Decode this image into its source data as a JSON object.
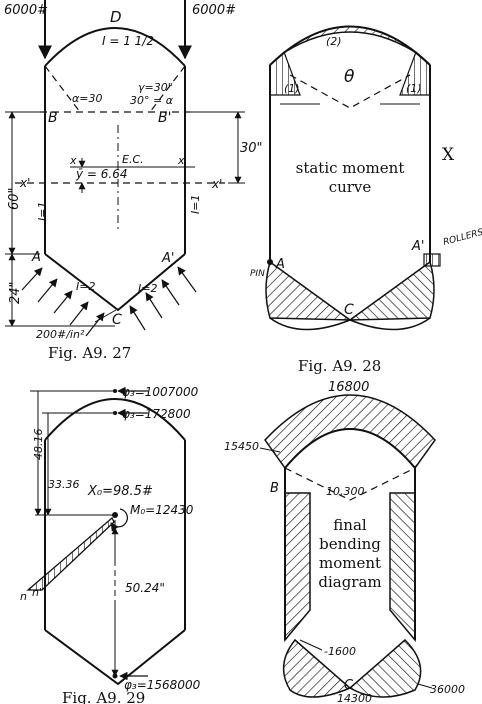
{
  "captions": {
    "fig27": "Fig. A9. 27",
    "fig28": "Fig. A9. 28",
    "fig29": "Fig. A9. 29"
  },
  "fig27": {
    "load_left": "6000#",
    "load_right": "6000#",
    "D": "D",
    "I_top": "I = 1 1/2",
    "alpha": "α=30",
    "gamma": "γ=30\"",
    "thirty_alpha": "30° = α",
    "B": "B",
    "B_prime": "B'",
    "dim_30": "30\"",
    "dim_60": "60\"",
    "x_left": "x",
    "x_right": "x",
    "x_prime_left": "x'",
    "x_prime_right": "x'",
    "ybar": "ȳ = 6.64",
    "ec": "E.C.",
    "I_left": "I=1",
    "I_right": "I=1",
    "A": "A",
    "A_prime": "A'",
    "dim_24": "24\"",
    "I_bl": "I=2",
    "I_br": "I=2",
    "C": "C",
    "pressure": "200#/in²"
  },
  "fig28": {
    "label2": "(2)",
    "label1_left": "(1)",
    "label1_right": "(1)",
    "theta": "θ",
    "X": "X",
    "text_line1": "static moment",
    "text_line2": "curve",
    "A": "A",
    "A_prime": "A'",
    "pin": "PIN",
    "rollers": "ROLLERS",
    "C": "C"
  },
  "fig29": {
    "phi1": "φ₃=1007000",
    "phi2": "φ₃=172800",
    "dim_4816": "48.16",
    "dim_3336": "33.36",
    "x0": "X₀=98.5#",
    "m0": "M₀=12430",
    "dim_5024": "50.24\"",
    "n": "n",
    "n_prime": "n'",
    "phi3": "φ₃=1568000"
  },
  "fig30": {
    "v16800": "16800",
    "v15450": "15450",
    "B": "B",
    "v10300": "10,300",
    "text_line1": "final",
    "text_line2": "bending",
    "text_line3": "moment",
    "text_line4": "diagram",
    "v1600": "-1600",
    "C": "C",
    "v14300": "14300",
    "v36000": "36000"
  }
}
